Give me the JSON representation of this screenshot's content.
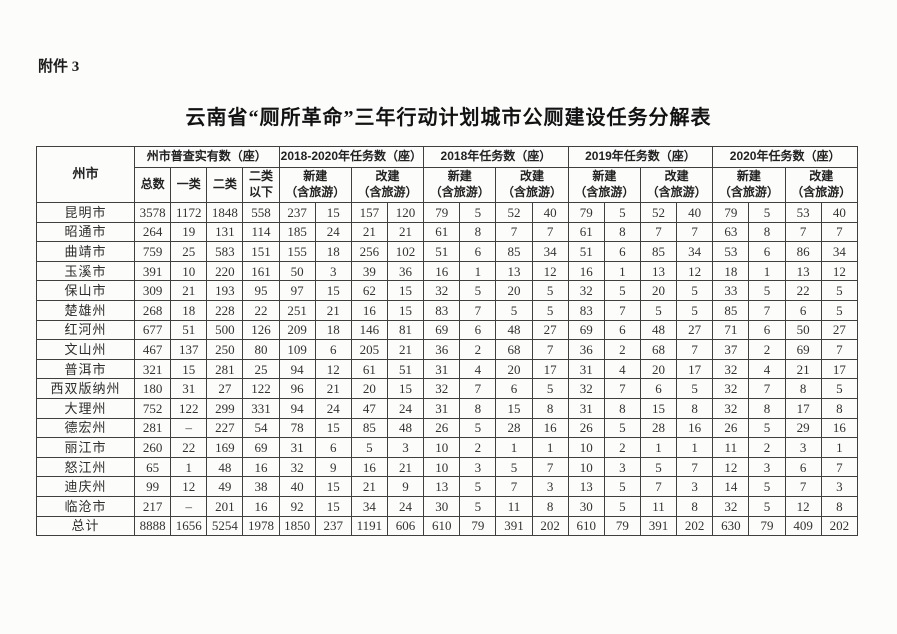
{
  "page": {
    "attachment_label": "附件 3",
    "title": "云南省“厕所革命”三年行动计划城市公厕建设任务分解表"
  },
  "theme": {
    "background": "#fcfcfb",
    "border_color": "#3f3f3f",
    "text_color": "#2a2a2a"
  },
  "table": {
    "header": {
      "city": "州市",
      "census": "州市普查实有数（座）",
      "y2018_2020": "2018-2020年任务数（座）",
      "y2018": "2018年任务数（座）",
      "y2019": "2019年任务数（座）",
      "y2020": "2020年任务数（座）"
    },
    "subheaders": {
      "census": [
        "总数",
        "一类",
        "二类",
        "二类以下"
      ],
      "new_line1": "新建",
      "rebuild_line1": "改建",
      "tourism": "（含旅游）"
    },
    "rows": [
      {
        "name": "昆明市",
        "values": [
          3578,
          1172,
          1848,
          558,
          237,
          15,
          157,
          120,
          79,
          5,
          52,
          40,
          79,
          5,
          52,
          40,
          79,
          5,
          53,
          40
        ]
      },
      {
        "name": "昭通市",
        "values": [
          264,
          19,
          131,
          114,
          185,
          24,
          21,
          21,
          61,
          8,
          7,
          7,
          61,
          8,
          7,
          7,
          63,
          8,
          7,
          7
        ]
      },
      {
        "name": "曲靖市",
        "values": [
          759,
          25,
          583,
          151,
          155,
          18,
          256,
          102,
          51,
          6,
          85,
          34,
          51,
          6,
          85,
          34,
          53,
          6,
          86,
          34
        ]
      },
      {
        "name": "玉溪市",
        "values": [
          391,
          10,
          220,
          161,
          50,
          3,
          39,
          36,
          16,
          1,
          13,
          12,
          16,
          1,
          13,
          12,
          18,
          1,
          13,
          12
        ]
      },
      {
        "name": "保山市",
        "values": [
          309,
          21,
          193,
          95,
          97,
          15,
          62,
          15,
          32,
          5,
          20,
          5,
          32,
          5,
          20,
          5,
          33,
          5,
          22,
          5
        ]
      },
      {
        "name": "楚雄州",
        "values": [
          268,
          18,
          228,
          22,
          251,
          21,
          16,
          15,
          83,
          7,
          5,
          5,
          83,
          7,
          5,
          5,
          85,
          7,
          6,
          5
        ]
      },
      {
        "name": "红河州",
        "values": [
          677,
          51,
          500,
          126,
          209,
          18,
          146,
          81,
          69,
          6,
          48,
          27,
          69,
          6,
          48,
          27,
          71,
          6,
          50,
          27
        ]
      },
      {
        "name": "文山州",
        "values": [
          467,
          137,
          250,
          80,
          109,
          6,
          205,
          21,
          36,
          2,
          68,
          7,
          36,
          2,
          68,
          7,
          37,
          2,
          69,
          7
        ]
      },
      {
        "name": "普洱市",
        "values": [
          321,
          15,
          281,
          25,
          94,
          12,
          61,
          51,
          31,
          4,
          20,
          17,
          31,
          4,
          20,
          17,
          32,
          4,
          21,
          17
        ]
      },
      {
        "name": "西双版纳州",
        "values": [
          180,
          31,
          27,
          122,
          96,
          21,
          20,
          15,
          32,
          7,
          6,
          5,
          32,
          7,
          6,
          5,
          32,
          7,
          8,
          5
        ]
      },
      {
        "name": "大理州",
        "values": [
          752,
          122,
          299,
          331,
          94,
          24,
          47,
          24,
          31,
          8,
          15,
          8,
          31,
          8,
          15,
          8,
          32,
          8,
          17,
          8
        ]
      },
      {
        "name": "德宏州",
        "values": [
          281,
          "–",
          227,
          54,
          78,
          15,
          85,
          48,
          26,
          5,
          28,
          16,
          26,
          5,
          28,
          16,
          26,
          5,
          29,
          16
        ]
      },
      {
        "name": "丽江市",
        "values": [
          260,
          22,
          169,
          69,
          31,
          6,
          5,
          3,
          10,
          2,
          1,
          1,
          10,
          2,
          1,
          1,
          11,
          2,
          3,
          1
        ]
      },
      {
        "name": "怒江州",
        "values": [
          65,
          1,
          48,
          16,
          32,
          9,
          16,
          21,
          10,
          3,
          5,
          7,
          10,
          3,
          5,
          7,
          12,
          3,
          6,
          7
        ]
      },
      {
        "name": "迪庆州",
        "values": [
          99,
          12,
          49,
          38,
          40,
          15,
          21,
          9,
          13,
          5,
          7,
          3,
          13,
          5,
          7,
          3,
          14,
          5,
          7,
          3
        ]
      },
      {
        "name": "临沧市",
        "values": [
          217,
          "–",
          201,
          16,
          92,
          15,
          34,
          24,
          30,
          5,
          11,
          8,
          30,
          5,
          11,
          8,
          32,
          5,
          12,
          8
        ]
      }
    ],
    "total": {
      "name": "总计",
      "values": [
        8888,
        1656,
        5254,
        1978,
        1850,
        237,
        1191,
        606,
        610,
        79,
        391,
        202,
        610,
        79,
        391,
        202,
        630,
        79,
        409,
        202
      ]
    }
  }
}
